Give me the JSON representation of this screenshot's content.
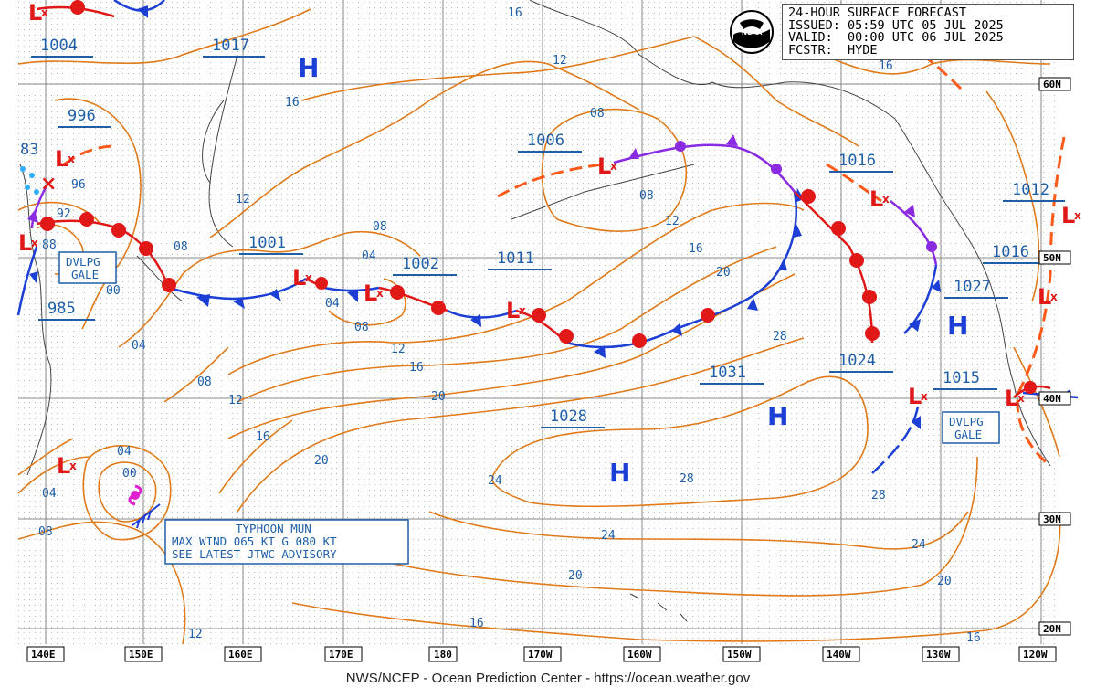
{
  "title": {
    "line1": "24-HOUR SURFACE FORECAST",
    "line2": "ISSUED: 05:59 UTC 05 JUL 2025",
    "line3": "VALID:  00:00 UTC 06 JUL 2025",
    "line4": "FCSTR:  HYDE"
  },
  "logo": {
    "text": "NOAA",
    "icon": "noaa-logo-icon"
  },
  "footer": "NWS/NCEP - Ocean Prediction Center - https://ocean.weather.gov",
  "longitudes": [
    "140E",
    "150E",
    "160E",
    "170E",
    "180",
    "170W",
    "160W",
    "150W",
    "140W",
    "130W",
    "120W"
  ],
  "latitudes": [
    "60N",
    "50N",
    "40N",
    "30N",
    "20N"
  ],
  "pressure_labels": [
    "1004",
    "1017",
    "996",
    "83",
    "1006",
    "1016",
    "1012",
    "1001",
    "1002",
    "1011",
    "1016",
    "1027",
    "985",
    "1031",
    "1024",
    "1015",
    "1028"
  ],
  "isobar_labels": [
    "16",
    "12",
    "16",
    "16",
    "08",
    "12",
    "96",
    "92",
    "88",
    "08",
    "08",
    "04",
    "12",
    "16",
    "20",
    "00",
    "04",
    "08",
    "12",
    "16",
    "20",
    "04",
    "08",
    "12",
    "16",
    "20",
    "28",
    "24",
    "28",
    "28",
    "04",
    "00",
    "04",
    "08",
    "24",
    "20",
    "16",
    "12",
    "16",
    "20",
    "24",
    "12",
    "08"
  ],
  "highs": [
    "H",
    "H",
    "H",
    "H"
  ],
  "lows": [
    "L",
    "L",
    "L",
    "L",
    "L",
    "L",
    "L",
    "L",
    "L",
    "L",
    "L",
    "L",
    "L"
  ],
  "warnings": {
    "dvlpg_gale_1": "DVLPG\nGALE",
    "dvlpg_gale_2": "DVLPG\nGALE",
    "typhoon": [
      "TYPHOON MUN",
      "MAX WIND 065 KT G 080 KT",
      "SEE LATEST JTWC ADVISORY"
    ]
  },
  "colors": {
    "isobar": "#e07a1a",
    "cold_front": "#1c3fd6",
    "warm_front": "#e01818",
    "occluded_front": "#8a2be2",
    "trough": "#ff5a1a",
    "label": "#1f5fa8",
    "grid": "#7a7a7a"
  }
}
